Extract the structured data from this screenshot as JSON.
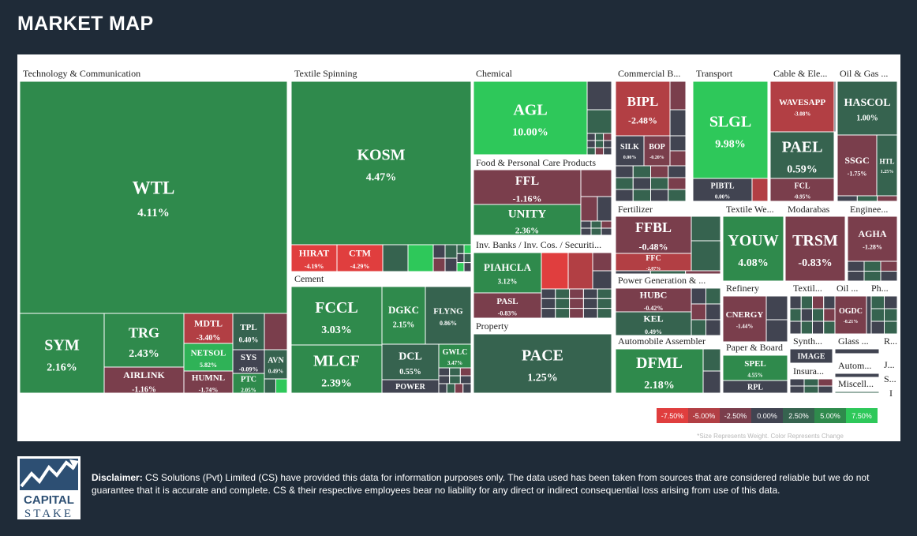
{
  "page": {
    "title": "MARKET MAP"
  },
  "footnote": "*Size Represents Weight. Color Represents Change",
  "disclaimer": {
    "label": "Disclaimer:",
    "text": "CS Solutions (Pvt) Limited (CS) have provided this data for information purposes only. The data used has been taken from sources that are considered reliable but we do not guarantee that it is accurate and complete. CS & their respective employees bear no liability for any direct or indirect consequential loss arising from use of this data."
  },
  "logo": {
    "line1": "CAPITAL",
    "line2": "STAKE"
  },
  "colors": {
    "background": "#1f2b38",
    "neg_strong": "#e03e3e",
    "neg_mid": "#b23f44",
    "neg_light": "#7a3e4c",
    "neutral": "#414451",
    "pos_light": "#36634f",
    "pos_mid": "#2f8a4c",
    "pos_strong": "#2ec85a"
  },
  "chart_data": {
    "type": "treemap",
    "legend": [
      "-7.50%",
      "-5.00%",
      "-2.50%",
      "0.00%",
      "2.50%",
      "5.00%",
      "7.50%"
    ],
    "sectors": [
      "Technology & Communication",
      "Textile Spinning",
      "Cement",
      "Chemical",
      "Food & Personal Care Products",
      "Inv. Banks / Inv. Cos. / Securiti...",
      "Property",
      "Commercial B...",
      "Transport",
      "Cable & Ele...",
      "Oil & Gas ...",
      "Fertilizer",
      "Textile We...",
      "Modarabas",
      "Enginee...",
      "Power Generation & ...",
      "Refinery",
      "Textil...",
      "Oil ...",
      "Ph...",
      "Automobile Assembler",
      "Paper & Board",
      "Synth...",
      "Glass ...",
      "R...",
      "Insura...",
      "Autom...",
      "J...",
      "S...",
      "Miscell...",
      "I"
    ],
    "stocks": [
      {
        "symbol": "WTL",
        "change": "4.11%"
      },
      {
        "symbol": "SYM",
        "change": "2.16%"
      },
      {
        "symbol": "TRG",
        "change": "2.43%"
      },
      {
        "symbol": "AIRLINK",
        "change": "-1.16%"
      },
      {
        "symbol": "MDTL",
        "change": "-3.40%"
      },
      {
        "symbol": "NETSOL",
        "change": "5.82%"
      },
      {
        "symbol": "HUMNL",
        "change": "-1.74%"
      },
      {
        "symbol": "TPL",
        "change": "0.40%"
      },
      {
        "symbol": "SYS",
        "change": "-0.09%"
      },
      {
        "symbol": "PTC",
        "change": "2.05%"
      },
      {
        "symbol": "AVN",
        "change": "0.49%"
      },
      {
        "symbol": "KOSM",
        "change": "4.47%"
      },
      {
        "symbol": "HIRAT",
        "change": "-4.19%"
      },
      {
        "symbol": "CTM",
        "change": "-4.29%"
      },
      {
        "symbol": "FCCL",
        "change": "3.03%"
      },
      {
        "symbol": "MLCF",
        "change": "2.39%"
      },
      {
        "symbol": "DGKC",
        "change": "2.15%"
      },
      {
        "symbol": "FLYNG",
        "change": "0.86%"
      },
      {
        "symbol": "DCL",
        "change": "0.55%"
      },
      {
        "symbol": "GWLC",
        "change": "3.47%"
      },
      {
        "symbol": "POWER",
        "change": ""
      },
      {
        "symbol": "AGL",
        "change": "10.00%"
      },
      {
        "symbol": "FFL",
        "change": "-1.16%"
      },
      {
        "symbol": "UNITY",
        "change": "2.36%"
      },
      {
        "symbol": "PIAHCLA",
        "change": "3.12%"
      },
      {
        "symbol": "PASL",
        "change": "-0.83%"
      },
      {
        "symbol": "PACE",
        "change": "1.25%"
      },
      {
        "symbol": "BIPL",
        "change": "-2.48%"
      },
      {
        "symbol": "SILK",
        "change": "0.00%"
      },
      {
        "symbol": "BOP",
        "change": "-0.20%"
      },
      {
        "symbol": "SLGL",
        "change": "9.98%"
      },
      {
        "symbol": "PIBTL",
        "change": "0.00%"
      },
      {
        "symbol": "WAVESAPP",
        "change": "-3.08%"
      },
      {
        "symbol": "PAEL",
        "change": "0.59%"
      },
      {
        "symbol": "FCL",
        "change": "-0.95%"
      },
      {
        "symbol": "HASCOL",
        "change": "1.00%"
      },
      {
        "symbol": "SSGC",
        "change": "-1.75%"
      },
      {
        "symbol": "HTL",
        "change": "1.25%"
      },
      {
        "symbol": "FFBL",
        "change": "-0.48%"
      },
      {
        "symbol": "FFC",
        "change": "-2.07%"
      },
      {
        "symbol": "YOUW",
        "change": "4.08%"
      },
      {
        "symbol": "TRSM",
        "change": "-0.83%"
      },
      {
        "symbol": "AGHA",
        "change": "-1.28%"
      },
      {
        "symbol": "HUBC",
        "change": "-0.42%"
      },
      {
        "symbol": "KEL",
        "change": "0.49%"
      },
      {
        "symbol": "CNERGY",
        "change": "-1.44%"
      },
      {
        "symbol": "OGDC",
        "change": "-0.21%"
      },
      {
        "symbol": "IMAGE",
        "change": ""
      },
      {
        "symbol": "DFML",
        "change": "2.18%"
      },
      {
        "symbol": "SPEL",
        "change": "4.55%"
      },
      {
        "symbol": "RPL",
        "change": ""
      }
    ]
  }
}
